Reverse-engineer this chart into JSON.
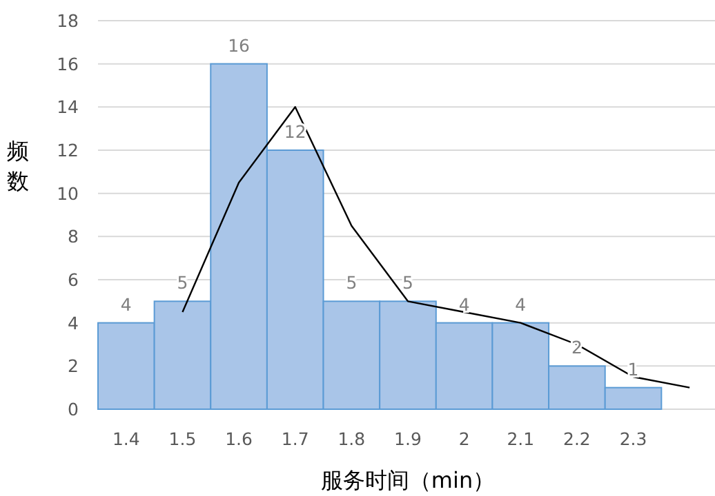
{
  "chart_data": {
    "type": "bar",
    "xlabel": "服务时间（min）",
    "ylabel": "频数",
    "categories": [
      "1.4",
      "1.5",
      "1.6",
      "1.7",
      "1.8",
      "1.9",
      "2",
      "2.1",
      "2.2",
      "2.3",
      null
    ],
    "ylim": [
      0,
      18
    ],
    "yticks": [
      0,
      2,
      4,
      6,
      8,
      10,
      12,
      14,
      16,
      18
    ],
    "grid": "y",
    "series": [
      {
        "color": "#a9c5e8",
        "values": [
          4,
          5,
          16,
          12,
          5,
          5,
          4,
          4,
          2,
          1,
          null
        ],
        "value_labels": [
          "4",
          "5",
          "16",
          "12",
          "5",
          "5",
          "4",
          "4",
          "2",
          "1",
          null
        ]
      },
      {
        "type": "line",
        "color": "#000000",
        "values": [
          null,
          4.5,
          10.5,
          14,
          8.5,
          5,
          4.5,
          4,
          3,
          1.5,
          1
        ]
      }
    ]
  }
}
